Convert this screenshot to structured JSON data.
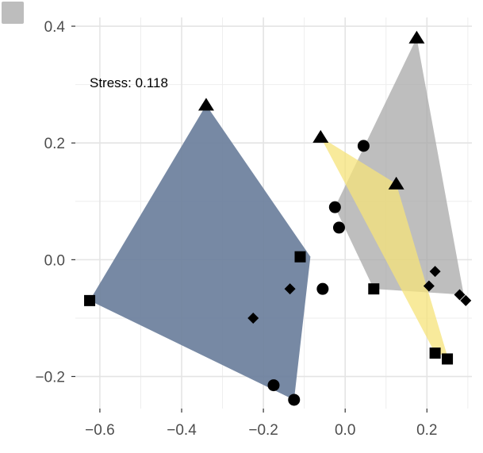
{
  "chart_data": {
    "type": "scatter",
    "annotation": "Stress: 0.118",
    "xlim": [
      -0.66,
      0.31
    ],
    "ylim": [
      -0.255,
      0.415
    ],
    "x_ticks": [
      -0.6,
      -0.4,
      -0.2,
      0.0,
      0.2
    ],
    "x_tick_labels": [
      "−0.6",
      "−0.4",
      "−0.2",
      "0.0",
      "0.2"
    ],
    "y_ticks": [
      -0.2,
      0.0,
      0.2,
      0.4
    ],
    "y_tick_labels": [
      "−0.2",
      "0.0",
      "0.2",
      "0.4"
    ],
    "grid": true,
    "legend_swatch_color": "#bdbdbd",
    "hulls": [
      {
        "color": "#6b7f9c",
        "opacity": 0.92,
        "points": [
          [
            -0.34,
            0.265
          ],
          [
            -0.625,
            -0.07
          ],
          [
            -0.125,
            -0.24
          ],
          [
            -0.085,
            0.005
          ]
        ]
      },
      {
        "color": "#a8a8a8",
        "opacity": 0.75,
        "points": [
          [
            0.175,
            0.38
          ],
          [
            0.29,
            -0.06
          ],
          [
            0.07,
            -0.05
          ],
          [
            -0.025,
            0.09
          ]
        ]
      },
      {
        "color": "#f5e37a",
        "opacity": 0.75,
        "points": [
          [
            -0.06,
            0.21
          ],
          [
            0.125,
            0.13
          ],
          [
            0.25,
            -0.165
          ],
          [
            0.22,
            -0.16
          ]
        ]
      }
    ],
    "points": [
      {
        "shape": "triangle",
        "x": -0.34,
        "y": 0.265
      },
      {
        "shape": "triangle",
        "x": -0.06,
        "y": 0.21
      },
      {
        "shape": "triangle",
        "x": 0.175,
        "y": 0.38
      },
      {
        "shape": "triangle",
        "x": 0.125,
        "y": 0.13
      },
      {
        "shape": "circle",
        "x": 0.045,
        "y": 0.195
      },
      {
        "shape": "circle",
        "x": -0.025,
        "y": 0.09
      },
      {
        "shape": "circle",
        "x": -0.015,
        "y": 0.055
      },
      {
        "shape": "circle",
        "x": -0.055,
        "y": -0.05
      },
      {
        "shape": "circle",
        "x": -0.175,
        "y": -0.215
      },
      {
        "shape": "circle",
        "x": -0.125,
        "y": -0.24
      },
      {
        "shape": "square",
        "x": -0.625,
        "y": -0.07
      },
      {
        "shape": "square",
        "x": -0.11,
        "y": 0.005
      },
      {
        "shape": "square",
        "x": 0.07,
        "y": -0.05
      },
      {
        "shape": "square",
        "x": 0.22,
        "y": -0.16
      },
      {
        "shape": "square",
        "x": 0.25,
        "y": -0.17
      },
      {
        "shape": "diamond",
        "x": -0.135,
        "y": -0.05
      },
      {
        "shape": "diamond",
        "x": -0.225,
        "y": -0.1
      },
      {
        "shape": "diamond",
        "x": 0.22,
        "y": -0.02
      },
      {
        "shape": "diamond",
        "x": 0.205,
        "y": -0.045
      },
      {
        "shape": "diamond",
        "x": 0.28,
        "y": -0.06
      },
      {
        "shape": "diamond",
        "x": 0.295,
        "y": -0.07
      }
    ]
  }
}
